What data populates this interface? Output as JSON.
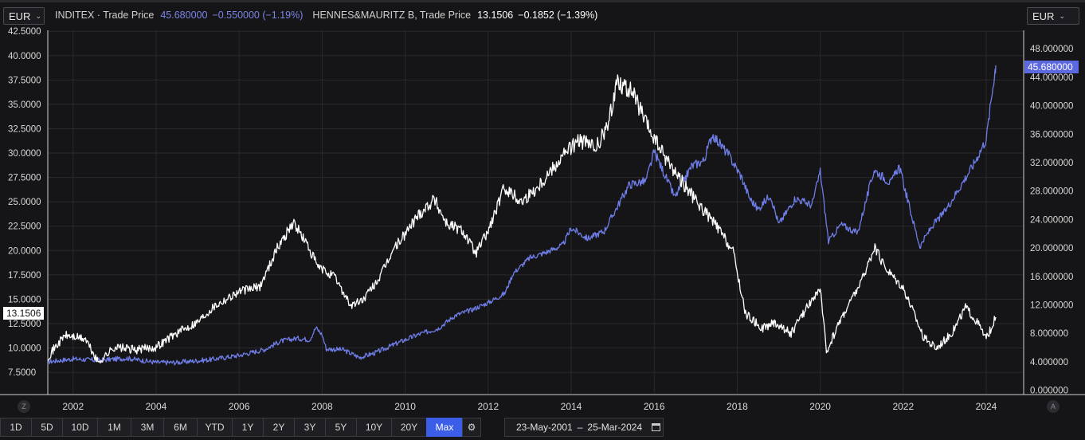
{
  "currency_left": {
    "label": "EUR"
  },
  "currency_right": {
    "label": "EUR"
  },
  "legend": {
    "s1_name": "INDITEX · Trade Price",
    "s1_value": "45.680000",
    "s1_change": "−0.550000 (−1.19%)",
    "s2_name": "HENNES&MAURITZ B, Trade Price",
    "s2_value": "13.1506",
    "s2_change": "−0.1852 (−1.39%)"
  },
  "last_tags": {
    "left": "13.1506",
    "right": "45.680000"
  },
  "colors": {
    "inditex": "#6f7de8",
    "hm": "#ffffff",
    "active": "#3b5de7",
    "bg": "#151517"
  },
  "toolbar": {
    "ranges": [
      "1D",
      "5D",
      "10D",
      "1M",
      "3M",
      "6M",
      "YTD",
      "1Y",
      "2Y",
      "3Y",
      "5Y",
      "10Y",
      "20Y",
      "Max"
    ],
    "active": "Max",
    "settings_icon": "gear-icon"
  },
  "date_range": {
    "from": "23-May-2001",
    "sep": "–",
    "to": "25-Mar-2024",
    "icon": "calendar-icon"
  },
  "corner_buttons": {
    "left": "Z",
    "right": "A"
  },
  "chart_data": {
    "type": "line",
    "x_range": [
      2001.39,
      2024.23
    ],
    "x_ticks": [
      "2002",
      "2004",
      "2006",
      "2008",
      "2010",
      "2012",
      "2014",
      "2016",
      "2018",
      "2020",
      "2022",
      "2024"
    ],
    "y_left": {
      "ticks": [
        "7.5000",
        "10.0000",
        "12.5000",
        "15.0000",
        "17.5000",
        "20.0000",
        "22.5000",
        "25.0000",
        "27.5000",
        "30.0000",
        "32.5000",
        "35.0000",
        "37.5000",
        "40.0000",
        "42.5000"
      ],
      "range": [
        5.3,
        42.6
      ]
    },
    "y_right": {
      "ticks": [
        "0.000000",
        "4.000000",
        "8.000000",
        "12.000000",
        "16.000000",
        "20.000000",
        "24.000000",
        "28.000000",
        "32.000000",
        "36.000000",
        "40.000000",
        "44.000000",
        "48.000000"
      ],
      "range": [
        -0.5,
        50.6
      ]
    },
    "series": [
      {
        "name": "INDITEX · Trade Price",
        "axis": "right",
        "points": [
          [
            2001.39,
            4.0
          ],
          [
            2002.0,
            4.4
          ],
          [
            2002.6,
            4.2
          ],
          [
            2003.3,
            4.5
          ],
          [
            2004.0,
            3.9
          ],
          [
            2004.5,
            3.9
          ],
          [
            2005.3,
            4.3
          ],
          [
            2006.0,
            4.9
          ],
          [
            2006.6,
            5.7
          ],
          [
            2007.0,
            6.9
          ],
          [
            2007.4,
            7.3
          ],
          [
            2007.7,
            7.1
          ],
          [
            2007.85,
            8.8
          ],
          [
            2008.0,
            7.8
          ],
          [
            2008.1,
            5.8
          ],
          [
            2008.5,
            5.7
          ],
          [
            2008.9,
            4.6
          ],
          [
            2009.3,
            5.3
          ],
          [
            2009.8,
            6.6
          ],
          [
            2010.3,
            7.8
          ],
          [
            2010.8,
            8.7
          ],
          [
            2011.2,
            10.5
          ],
          [
            2011.6,
            11.3
          ],
          [
            2012.0,
            12.3
          ],
          [
            2012.4,
            13.6
          ],
          [
            2012.6,
            16.4
          ],
          [
            2013.0,
            18.6
          ],
          [
            2013.4,
            19.4
          ],
          [
            2013.8,
            20.4
          ],
          [
            2014.0,
            22.8
          ],
          [
            2014.4,
            21.3
          ],
          [
            2014.8,
            22.4
          ],
          [
            2015.0,
            24.6
          ],
          [
            2015.4,
            28.9
          ],
          [
            2015.8,
            29.4
          ],
          [
            2016.0,
            33.5
          ],
          [
            2016.2,
            31.0
          ],
          [
            2016.5,
            27.1
          ],
          [
            2016.9,
            31.5
          ],
          [
            2017.2,
            32.3
          ],
          [
            2017.4,
            36.0
          ],
          [
            2017.8,
            33.0
          ],
          [
            2018.1,
            30.0
          ],
          [
            2018.3,
            27.0
          ],
          [
            2018.5,
            25.4
          ],
          [
            2018.8,
            27.5
          ],
          [
            2019.0,
            23.3
          ],
          [
            2019.4,
            27.0
          ],
          [
            2019.8,
            26.0
          ],
          [
            2020.0,
            30.8
          ],
          [
            2020.2,
            20.9
          ],
          [
            2020.5,
            23.3
          ],
          [
            2020.9,
            22.1
          ],
          [
            2021.3,
            31.0
          ],
          [
            2021.7,
            29.1
          ],
          [
            2021.9,
            31.5
          ],
          [
            2022.2,
            24.6
          ],
          [
            2022.4,
            20.2
          ],
          [
            2022.7,
            23.1
          ],
          [
            2023.0,
            25.1
          ],
          [
            2023.4,
            28.9
          ],
          [
            2023.7,
            31.8
          ],
          [
            2024.0,
            35.3
          ],
          [
            2024.2,
            44.5
          ],
          [
            2024.23,
            45.68
          ]
        ]
      },
      {
        "name": "HENNES&MAURITZ B, Trade Price",
        "axis": "left",
        "points": [
          [
            2001.39,
            9.1
          ],
          [
            2001.8,
            11.3
          ],
          [
            2002.3,
            10.9
          ],
          [
            2002.6,
            8.5
          ],
          [
            2003.0,
            10.1
          ],
          [
            2003.5,
            9.8
          ],
          [
            2004.0,
            10.1
          ],
          [
            2004.4,
            11.3
          ],
          [
            2005.0,
            12.7
          ],
          [
            2005.4,
            14.3
          ],
          [
            2006.0,
            15.8
          ],
          [
            2006.5,
            16.3
          ],
          [
            2006.9,
            20.1
          ],
          [
            2007.3,
            22.9
          ],
          [
            2007.6,
            20.9
          ],
          [
            2007.9,
            18.3
          ],
          [
            2008.3,
            17.3
          ],
          [
            2008.7,
            14.3
          ],
          [
            2009.0,
            15.0
          ],
          [
            2009.4,
            17.3
          ],
          [
            2009.7,
            20.0
          ],
          [
            2010.0,
            21.7
          ],
          [
            2010.3,
            23.6
          ],
          [
            2010.7,
            25.3
          ],
          [
            2011.0,
            22.8
          ],
          [
            2011.4,
            22.0
          ],
          [
            2011.7,
            19.7
          ],
          [
            2012.0,
            22.0
          ],
          [
            2012.4,
            26.5
          ],
          [
            2012.8,
            25.0
          ],
          [
            2013.2,
            26.6
          ],
          [
            2013.5,
            28.2
          ],
          [
            2013.9,
            30.3
          ],
          [
            2014.2,
            31.3
          ],
          [
            2014.6,
            30.5
          ],
          [
            2014.9,
            32.9
          ],
          [
            2015.1,
            37.5
          ],
          [
            2015.5,
            36.1
          ],
          [
            2015.8,
            33.0
          ],
          [
            2016.2,
            30.0
          ],
          [
            2016.6,
            27.5
          ],
          [
            2017.0,
            25.1
          ],
          [
            2017.5,
            22.5
          ],
          [
            2017.9,
            19.9
          ],
          [
            2018.2,
            13.5
          ],
          [
            2018.6,
            12.0
          ],
          [
            2018.9,
            12.6
          ],
          [
            2019.3,
            11.5
          ],
          [
            2019.8,
            15.0
          ],
          [
            2020.0,
            16.0
          ],
          [
            2020.15,
            9.6
          ],
          [
            2020.5,
            13.0
          ],
          [
            2021.0,
            16.9
          ],
          [
            2021.3,
            20.3
          ],
          [
            2021.6,
            18.1
          ],
          [
            2022.0,
            16.2
          ],
          [
            2022.2,
            14.2
          ],
          [
            2022.5,
            11.0
          ],
          [
            2022.8,
            10.0
          ],
          [
            2023.2,
            11.7
          ],
          [
            2023.5,
            14.2
          ],
          [
            2023.8,
            12.5
          ],
          [
            2024.0,
            10.9
          ],
          [
            2024.23,
            13.15
          ]
        ]
      }
    ]
  }
}
